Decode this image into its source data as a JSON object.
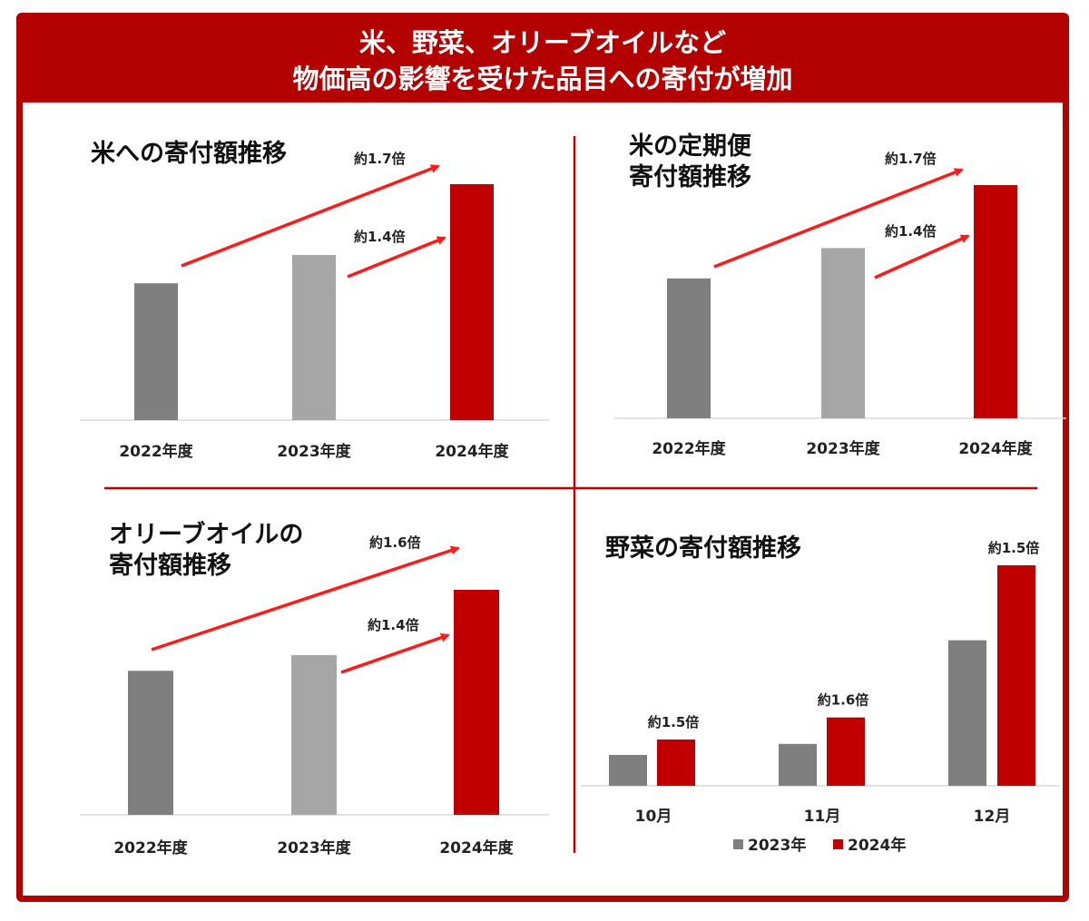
{
  "header": {
    "line1": "米、野菜、オリーブオイルなど",
    "line2": "物価高の影響を受けた品目への寄付が増加"
  },
  "colors": {
    "brand_red": "#b30000",
    "bar_2022": "#7f7f7f",
    "bar_2023": "#a6a6a6",
    "bar_2024": "#c00000"
  },
  "chart_data": [
    {
      "type": "bar",
      "title_lines": [
        "米への寄付額推移"
      ],
      "categories": [
        "2022年度",
        "2023年度",
        "2024年度"
      ],
      "values": [
        0.58,
        0.7,
        1.0
      ],
      "annotations": [
        "約1.7倍",
        "約1.4倍"
      ]
    },
    {
      "type": "bar",
      "title_lines": [
        "米の定期便",
        "寄付額推移"
      ],
      "categories": [
        "2022年度",
        "2023年度",
        "2024年度"
      ],
      "values": [
        0.6,
        0.73,
        1.0
      ],
      "annotations": [
        "約1.7倍",
        "約1.4倍"
      ]
    },
    {
      "type": "bar",
      "title_lines": [
        "オリーブオイルの",
        "寄付額推移"
      ],
      "categories": [
        "2022年度",
        "2023年度",
        "2024年度"
      ],
      "values": [
        0.64,
        0.71,
        1.0
      ],
      "annotations": [
        "約1.6倍",
        "約1.4倍"
      ]
    },
    {
      "type": "bar",
      "title_lines": [
        "野菜の寄付額推移"
      ],
      "categories": [
        "10月",
        "11月",
        "12月"
      ],
      "series": [
        {
          "name": "2023年",
          "values": [
            0.14,
            0.19,
            0.66
          ]
        },
        {
          "name": "2024年",
          "values": [
            0.21,
            0.31,
            1.0
          ]
        }
      ],
      "annotations": [
        "約1.5倍",
        "約1.6倍",
        "約1.5倍"
      ],
      "legend": "bottom"
    }
  ]
}
